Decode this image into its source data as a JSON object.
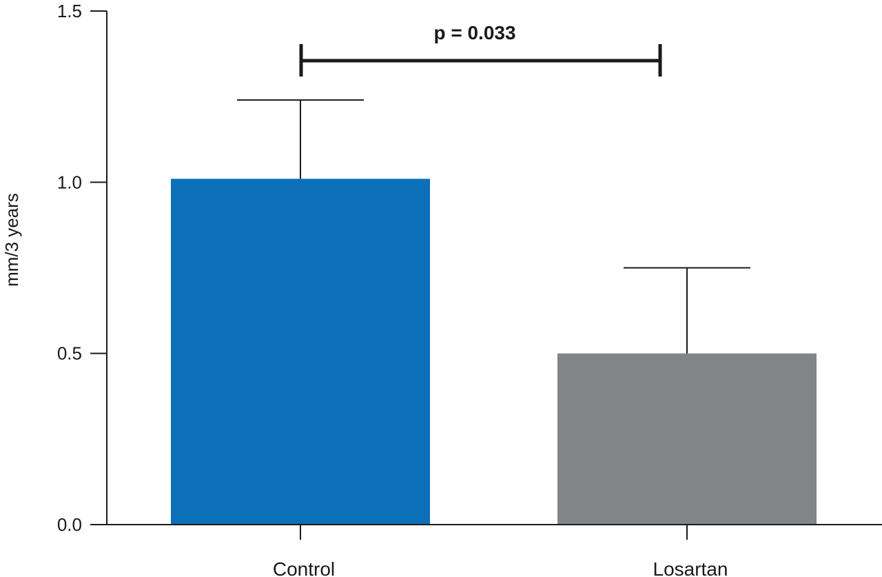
{
  "chart_data": {
    "type": "bar",
    "title": "",
    "xlabel": "",
    "ylabel": "mm/3 years",
    "ylim": [
      0,
      1.5
    ],
    "yticks": [
      0.0,
      0.5,
      1.0,
      1.5
    ],
    "ytick_labels": [
      "0.0",
      "0.5",
      "1.0",
      "1.5"
    ],
    "categories": [
      "Control",
      "Losartan"
    ],
    "values": [
      1.01,
      0.5
    ],
    "error_upper": [
      1.24,
      0.75
    ],
    "colors": [
      "#0c70b8",
      "#838487"
    ],
    "annotation": {
      "text": "p = 0.033",
      "from": "Control",
      "to": "Losartan"
    },
    "grid": false,
    "legend": "none"
  }
}
